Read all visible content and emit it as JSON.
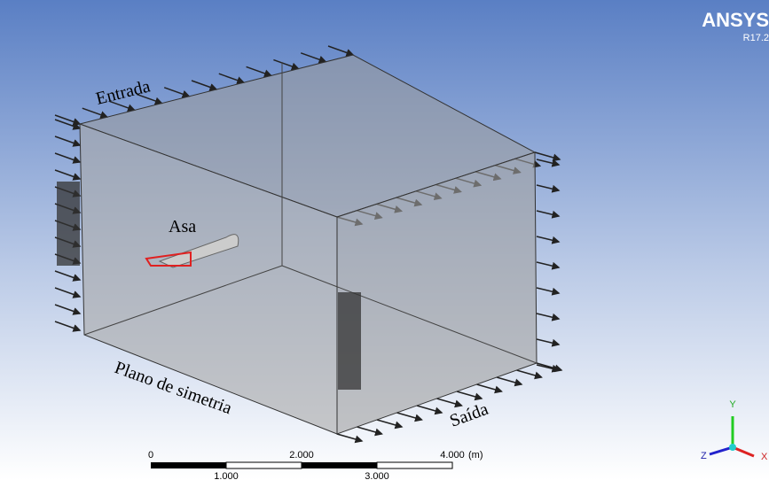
{
  "logo": {
    "brand": "ANSYS",
    "version": "R17.2"
  },
  "labels": {
    "inlet": "Entrada",
    "wing": "Asa",
    "symmetry": "Plano de simetria",
    "outlet": "Saída"
  },
  "scale_bar": {
    "top_labels": [
      "0",
      "2.000",
      "4.000"
    ],
    "unit": "(m)",
    "bottom_labels": [
      "1.000",
      "3.000"
    ]
  },
  "triad": {
    "y": "Y",
    "z": "Z",
    "x": "X"
  }
}
